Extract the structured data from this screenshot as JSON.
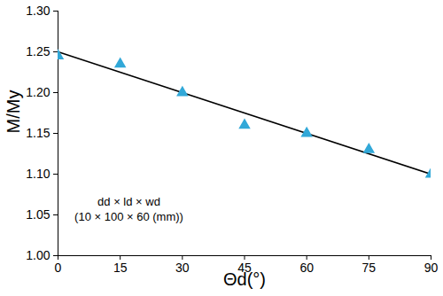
{
  "chart_data": {
    "type": "scatter",
    "x_label": "Θd(°)",
    "y_label": "M/My",
    "x": [
      0,
      15,
      30,
      45,
      60,
      75,
      90
    ],
    "values": [
      1.245,
      1.235,
      1.2,
      1.16,
      1.15,
      1.13,
      1.1
    ],
    "color": "#31A8D8",
    "marker": "triangle",
    "trend": {
      "type": "line",
      "x": [
        0,
        90
      ],
      "values": [
        1.25,
        1.1
      ],
      "color": "#000000",
      "line_style": "solid"
    },
    "xlim": [
      0,
      90
    ],
    "xticks": [
      0,
      15,
      30,
      45,
      60,
      75,
      90
    ],
    "ylim": [
      1.0,
      1.3
    ],
    "yticks": [
      {
        "value": 1.0,
        "label": "1.00"
      },
      {
        "value": 1.05,
        "label": "1.05"
      },
      {
        "value": 1.1,
        "label": "1.10"
      },
      {
        "value": 1.15,
        "label": "1.15"
      },
      {
        "value": 1.2,
        "label": "1.20"
      },
      {
        "value": 1.25,
        "label": "1.25"
      },
      {
        "value": 1.3,
        "label": "1.30"
      }
    ],
    "annotations": [
      "dd × ld × wd",
      "(10 × 100 × 60 (mm))"
    ],
    "grid": false
  }
}
